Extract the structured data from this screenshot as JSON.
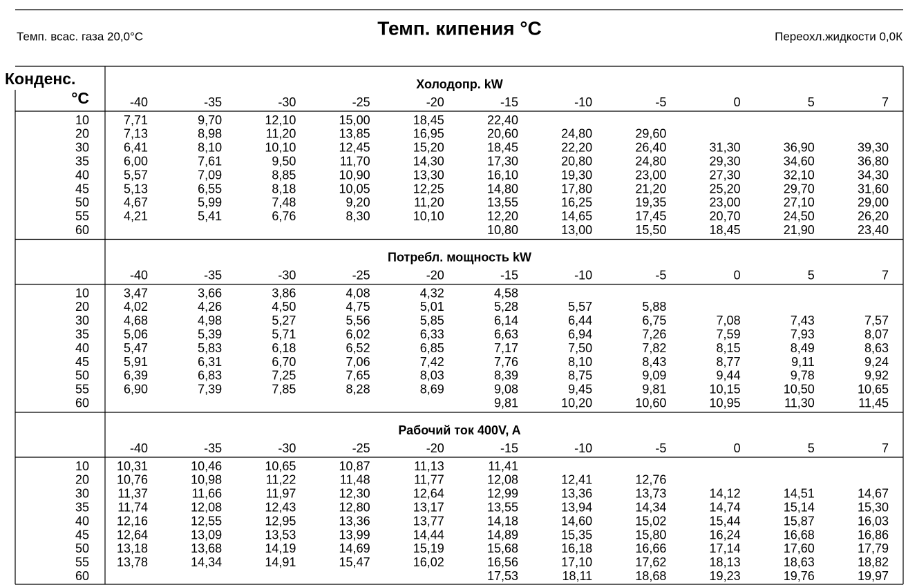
{
  "header": {
    "left": "Темп. всас. газа 20,0°C",
    "title": "Темп. кипения °C",
    "right": "Переохл.жидкости 0,0К"
  },
  "table": {
    "row_header": [
      "Конденс.",
      "°C"
    ],
    "sections": [
      {
        "title": "Холодопр. kW",
        "columns": [
          "-40",
          "-35",
          "-30",
          "-25",
          "-20",
          "-15",
          "-10",
          "-5",
          "0",
          "5",
          "7"
        ],
        "rows": [
          {
            "label": "10",
            "values": [
              "7,71",
              "9,70",
              "12,10",
              "15,00",
              "18,45",
              "22,40",
              null,
              null,
              null,
              null,
              null
            ]
          },
          {
            "label": "20",
            "values": [
              "7,13",
              "8,98",
              "11,20",
              "13,85",
              "16,95",
              "20,60",
              "24,80",
              "29,60",
              null,
              null,
              null
            ]
          },
          {
            "label": "30",
            "values": [
              "6,41",
              "8,10",
              "10,10",
              "12,45",
              "15,20",
              "18,45",
              "22,20",
              "26,40",
              "31,30",
              "36,90",
              "39,30"
            ]
          },
          {
            "label": "35",
            "values": [
              "6,00",
              "7,61",
              "9,50",
              "11,70",
              "14,30",
              "17,30",
              "20,80",
              "24,80",
              "29,30",
              "34,60",
              "36,80"
            ]
          },
          {
            "label": "40",
            "values": [
              "5,57",
              "7,09",
              "8,85",
              "10,90",
              "13,30",
              "16,10",
              "19,30",
              "23,00",
              "27,30",
              "32,10",
              "34,30"
            ]
          },
          {
            "label": "45",
            "values": [
              "5,13",
              "6,55",
              "8,18",
              "10,05",
              "12,25",
              "14,80",
              "17,80",
              "21,20",
              "25,20",
              "29,70",
              "31,60"
            ]
          },
          {
            "label": "50",
            "values": [
              "4,67",
              "5,99",
              "7,48",
              "9,20",
              "11,20",
              "13,55",
              "16,25",
              "19,35",
              "23,00",
              "27,10",
              "29,00"
            ]
          },
          {
            "label": "55",
            "values": [
              "4,21",
              "5,41",
              "6,76",
              "8,30",
              "10,10",
              "12,20",
              "14,65",
              "17,45",
              "20,70",
              "24,50",
              "26,20"
            ]
          },
          {
            "label": "60",
            "values": [
              null,
              null,
              null,
              null,
              null,
              "10,80",
              "13,00",
              "15,50",
              "18,45",
              "21,90",
              "23,40"
            ]
          }
        ]
      },
      {
        "title": "Потребл. мощность kW",
        "columns": [
          "-40",
          "-35",
          "-30",
          "-25",
          "-20",
          "-15",
          "-10",
          "-5",
          "0",
          "5",
          "7"
        ],
        "rows": [
          {
            "label": "10",
            "values": [
              "3,47",
              "3,66",
              "3,86",
              "4,08",
              "4,32",
              "4,58",
              null,
              null,
              null,
              null,
              null
            ]
          },
          {
            "label": "20",
            "values": [
              "4,02",
              "4,26",
              "4,50",
              "4,75",
              "5,01",
              "5,28",
              "5,57",
              "5,88",
              null,
              null,
              null
            ]
          },
          {
            "label": "30",
            "values": [
              "4,68",
              "4,98",
              "5,27",
              "5,56",
              "5,85",
              "6,14",
              "6,44",
              "6,75",
              "7,08",
              "7,43",
              "7,57"
            ]
          },
          {
            "label": "35",
            "values": [
              "5,06",
              "5,39",
              "5,71",
              "6,02",
              "6,33",
              "6,63",
              "6,94",
              "7,26",
              "7,59",
              "7,93",
              "8,07"
            ]
          },
          {
            "label": "40",
            "values": [
              "5,47",
              "5,83",
              "6,18",
              "6,52",
              "6,85",
              "7,17",
              "7,50",
              "7,82",
              "8,15",
              "8,49",
              "8,63"
            ]
          },
          {
            "label": "45",
            "values": [
              "5,91",
              "6,31",
              "6,70",
              "7,06",
              "7,42",
              "7,76",
              "8,10",
              "8,43",
              "8,77",
              "9,11",
              "9,24"
            ]
          },
          {
            "label": "50",
            "values": [
              "6,39",
              "6,83",
              "7,25",
              "7,65",
              "8,03",
              "8,39",
              "8,75",
              "9,09",
              "9,44",
              "9,78",
              "9,92"
            ]
          },
          {
            "label": "55",
            "values": [
              "6,90",
              "7,39",
              "7,85",
              "8,28",
              "8,69",
              "9,08",
              "9,45",
              "9,81",
              "10,15",
              "10,50",
              "10,65"
            ]
          },
          {
            "label": "60",
            "values": [
              null,
              null,
              null,
              null,
              null,
              "9,81",
              "10,20",
              "10,60",
              "10,95",
              "11,30",
              "11,45"
            ]
          }
        ]
      },
      {
        "title": "Рабочий ток 400V, A",
        "columns": [
          "-40",
          "-35",
          "-30",
          "-25",
          "-20",
          "-15",
          "-10",
          "-5",
          "0",
          "5",
          "7"
        ],
        "rows": [
          {
            "label": "10",
            "values": [
              "10,31",
              "10,46",
              "10,65",
              "10,87",
              "11,13",
              "11,41",
              null,
              null,
              null,
              null,
              null
            ]
          },
          {
            "label": "20",
            "values": [
              "10,76",
              "10,98",
              "11,22",
              "11,48",
              "11,77",
              "12,08",
              "12,41",
              "12,76",
              null,
              null,
              null
            ]
          },
          {
            "label": "30",
            "values": [
              "11,37",
              "11,66",
              "11,97",
              "12,30",
              "12,64",
              "12,99",
              "13,36",
              "13,73",
              "14,12",
              "14,51",
              "14,67"
            ]
          },
          {
            "label": "35",
            "values": [
              "11,74",
              "12,08",
              "12,43",
              "12,80",
              "13,17",
              "13,55",
              "13,94",
              "14,34",
              "14,74",
              "15,14",
              "15,30"
            ]
          },
          {
            "label": "40",
            "values": [
              "12,16",
              "12,55",
              "12,95",
              "13,36",
              "13,77",
              "14,18",
              "14,60",
              "15,02",
              "15,44",
              "15,87",
              "16,03"
            ]
          },
          {
            "label": "45",
            "values": [
              "12,64",
              "13,09",
              "13,53",
              "13,99",
              "14,44",
              "14,89",
              "15,35",
              "15,80",
              "16,24",
              "16,68",
              "16,86"
            ]
          },
          {
            "label": "50",
            "values": [
              "13,18",
              "13,68",
              "14,19",
              "14,69",
              "15,19",
              "15,68",
              "16,18",
              "16,66",
              "17,14",
              "17,60",
              "17,79"
            ]
          },
          {
            "label": "55",
            "values": [
              "13,78",
              "14,34",
              "14,91",
              "15,47",
              "16,02",
              "16,56",
              "17,10",
              "17,62",
              "18,13",
              "18,63",
              "18,82"
            ]
          },
          {
            "label": "60",
            "values": [
              null,
              null,
              null,
              null,
              null,
              "17,53",
              "18,11",
              "18,68",
              "19,23",
              "19,76",
              "19,97"
            ]
          }
        ]
      }
    ]
  }
}
